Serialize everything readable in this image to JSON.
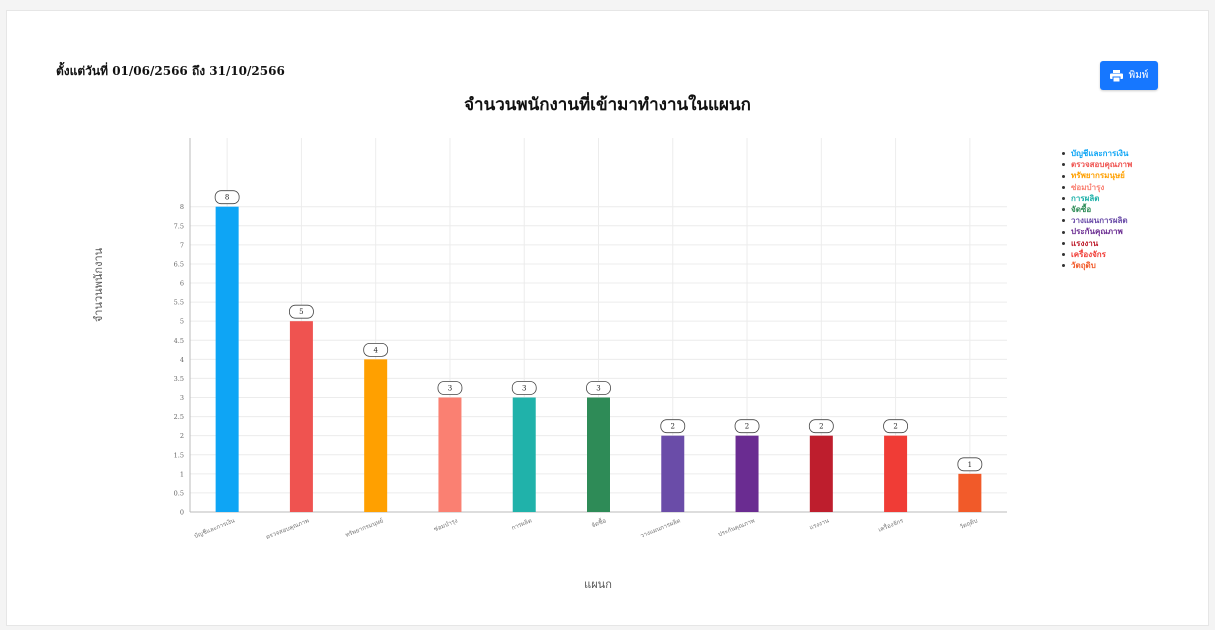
{
  "header": {
    "date_range": "ตั้งแต่วันที่ 01/06/2566 ถึง 31/10/2566",
    "print_label": "พิมพ์",
    "print_icon": "printer-icon"
  },
  "chart_data": {
    "type": "bar",
    "title": "จำนวนพนักงานที่เข้ามาทำงานในแผนก",
    "xlabel": "แผนก",
    "ylabel": "จำนวนพนักงาน",
    "categories": [
      "บัญชีและการเงิน",
      "ตรวจสอบคุณภาพ",
      "ทรัพยากรมนุษย์",
      "ซ่อมบำรุง",
      "การผลิต",
      "จัดซื้อ",
      "วางแผนการผลิต",
      "ประกันคุณภาพ",
      "แรงงาน",
      "เครื่องจักร",
      "วัตถุดิบ"
    ],
    "values": [
      8,
      5,
      4,
      3,
      3,
      3,
      2,
      2,
      2,
      2,
      1
    ],
    "colors": [
      "#0ea5f5",
      "#ef5350",
      "#ffa000",
      "#fa8072",
      "#20b2aa",
      "#2e8b57",
      "#6a4ca8",
      "#6a2c91",
      "#be1e2d",
      "#f03c36",
      "#f15a29"
    ],
    "ylim": [
      0,
      9.8
    ],
    "yticks": [
      0,
      0.5,
      1,
      1.5,
      2,
      2.5,
      3,
      3.5,
      4,
      4.5,
      5,
      5.5,
      6,
      6.5,
      7,
      7.5,
      8
    ],
    "grid": true,
    "data_labels": true,
    "legend_position": "right"
  }
}
